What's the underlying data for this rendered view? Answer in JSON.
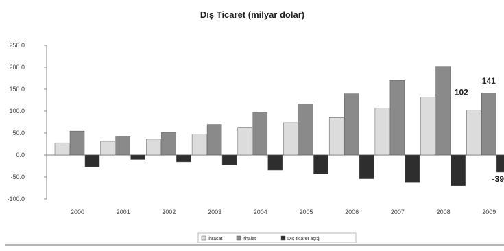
{
  "chart_data": {
    "type": "bar",
    "title": "Dış Ticaret (milyar dolar)",
    "categories": [
      "2000",
      "2001",
      "2002",
      "2003",
      "2004",
      "2005",
      "2006",
      "2007",
      "2008",
      "2009"
    ],
    "series": [
      {
        "name": "İhracat",
        "color": "#dcdcdc",
        "values": [
          27.8,
          31.3,
          36.1,
          47.3,
          63.2,
          73.5,
          85.5,
          107.3,
          132.0,
          102
        ]
      },
      {
        "name": "İthalat",
        "color": "#8a8a8a",
        "values": [
          54.5,
          41.4,
          51.6,
          69.3,
          97.5,
          116.8,
          139.6,
          170.1,
          202.0,
          141
        ]
      },
      {
        "name": "Dış ticaret açığı",
        "color": "#2e2e2e",
        "values": [
          -26.7,
          -10.1,
          -15.5,
          -22.1,
          -34.4,
          -43.3,
          -54.0,
          -62.8,
          -69.9,
          -39
        ]
      }
    ],
    "ylim": [
      -100,
      250
    ],
    "yticks": [
      "250.0",
      "200.0",
      "150.0",
      "100.0",
      "50.0",
      "0.0",
      "-50.0",
      "-100.0"
    ],
    "ytick_values": [
      250,
      200,
      150,
      100,
      50,
      0,
      -50,
      -100
    ],
    "data_labels": [
      {
        "text": "102",
        "series": 0,
        "category": 9
      },
      {
        "text": "141",
        "series": 1,
        "category": 9
      },
      {
        "text": "-39",
        "series": 2,
        "category": 9
      }
    ],
    "legend": "bottom",
    "legend_labels": [
      "İhracat",
      "İthalat",
      "Dış ticaret açığı"
    ],
    "grid": false
  }
}
